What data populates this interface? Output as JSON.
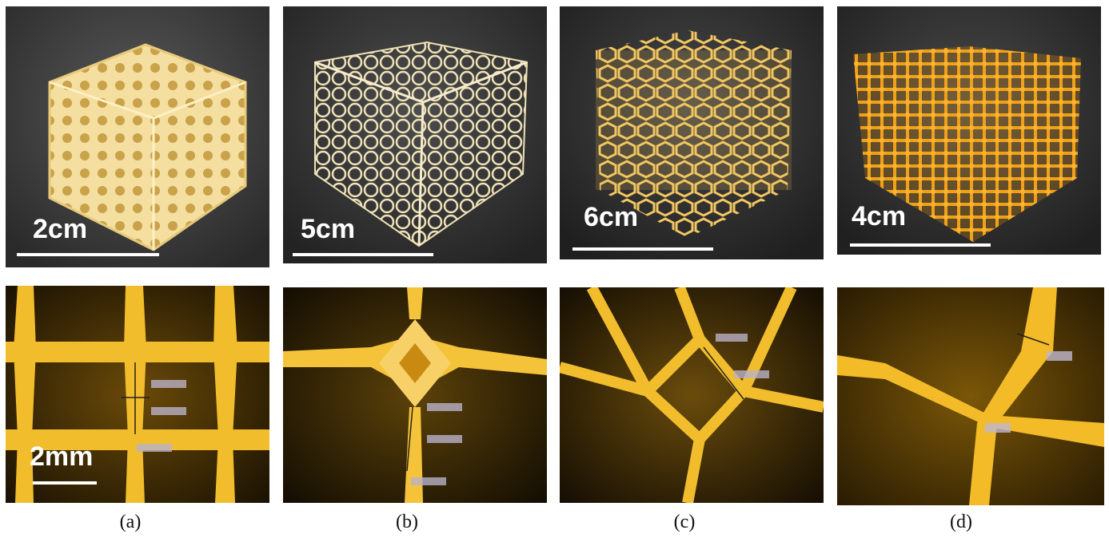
{
  "photos": {
    "a": {
      "scale_label": "2cm"
    },
    "b": {
      "scale_label": "5cm"
    },
    "c": {
      "scale_label": "6cm"
    },
    "d": {
      "scale_label": "4cm"
    }
  },
  "micrographs": {
    "a": {
      "scale_label": "2mm"
    }
  },
  "captions": [
    "(a)",
    "(b)",
    "(c)",
    "(d)"
  ],
  "colors": {
    "background_dark": "#2b2b2b",
    "lattice_pale": "#f1dc9a",
    "lattice_orange": "#f0a21a",
    "micro_yellow": "#f2bd2c"
  }
}
